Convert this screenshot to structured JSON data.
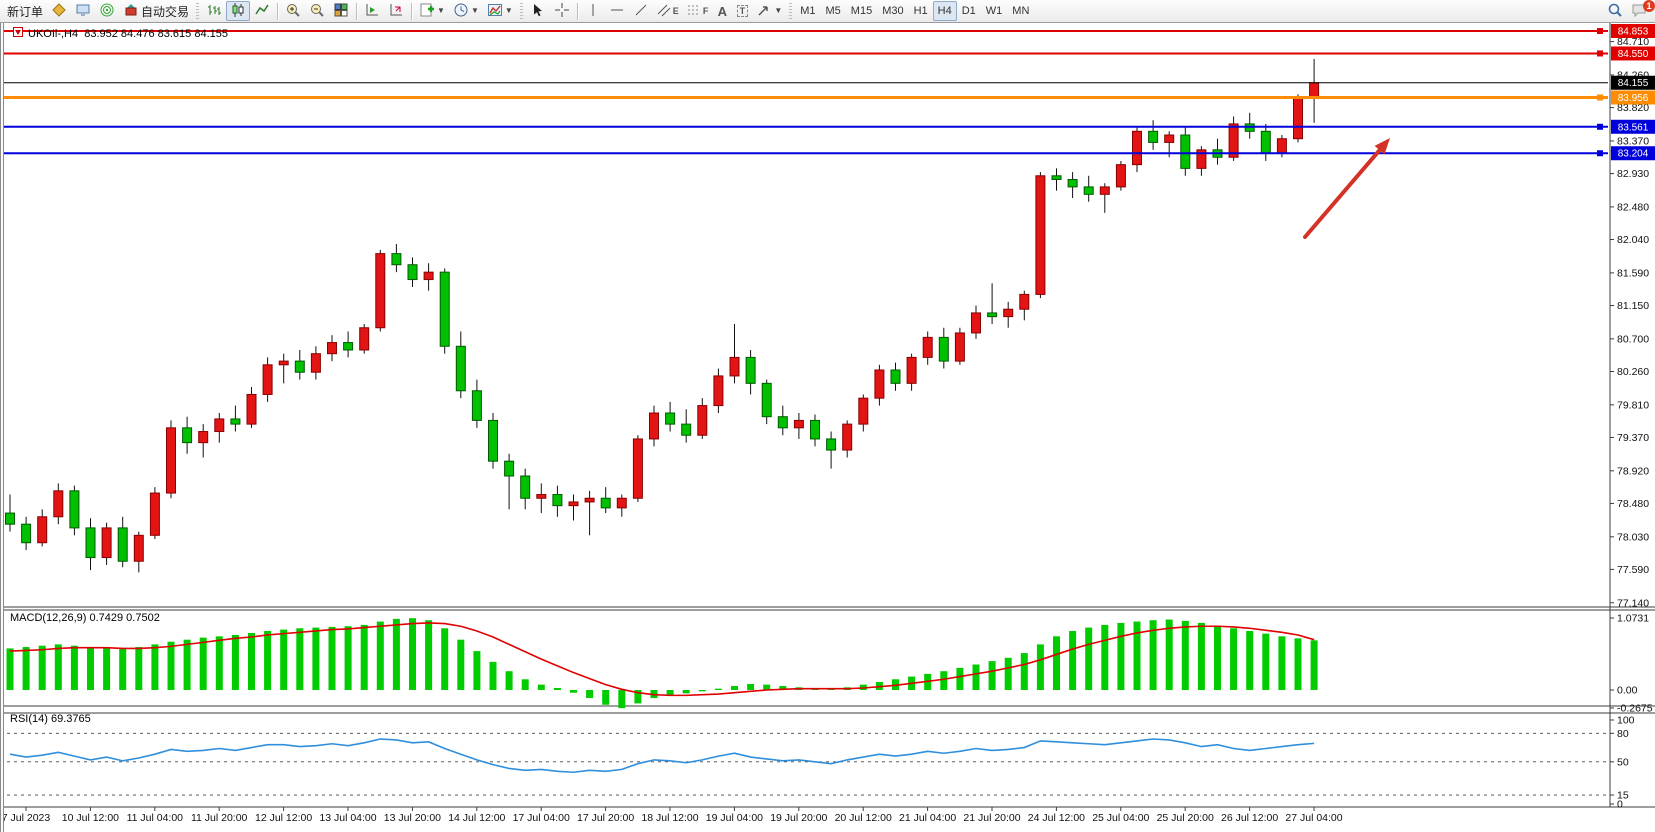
{
  "toolbar": {
    "new_order_label": "新订单",
    "autotrading_label": "自动交易",
    "timeframes": [
      "M1",
      "M5",
      "M15",
      "M30",
      "H1",
      "H4",
      "D1",
      "W1",
      "MN"
    ],
    "active_timeframe": "H4",
    "notification_count": "1",
    "tool_letters": {
      "channel": "E",
      "fibo": "F",
      "text": "A",
      "label": "T"
    }
  },
  "chart": {
    "title": "UKOIl-,H4  83.952 84.476 83.615 84.155"
  },
  "indicators": {
    "macd_label": "MACD(12,26,9) 0.7429 0.7502",
    "rsi_label": "RSI(14) 69.3765"
  },
  "chart_data": {
    "type": "candlestick",
    "symbol": "UKOIl-",
    "timeframe": "H4",
    "ohlc_current": {
      "open": 83.952,
      "high": 84.476,
      "low": 83.615,
      "close": 84.155
    },
    "up_color": "#e21414",
    "down_color": "#00c000",
    "ylim": [
      77.1,
      84.96
    ],
    "price_axis_ticks": [
      "84.710",
      "84.260",
      "83.820",
      "83.370",
      "82.930",
      "82.480",
      "82.040",
      "81.590",
      "81.150",
      "80.700",
      "80.260",
      "79.810",
      "79.370",
      "78.920",
      "78.480",
      "78.030",
      "77.590",
      "77.140"
    ],
    "hlines": [
      {
        "price": 84.853,
        "label": "84.853",
        "color": "#e00000",
        "width": 2
      },
      {
        "price": 84.55,
        "label": "84.550",
        "color": "#e00000",
        "width": 2
      },
      {
        "price": 84.155,
        "label": "84.155",
        "color": "#000000",
        "width": 1,
        "current": true
      },
      {
        "price": 83.956,
        "label": "83.956",
        "color": "#ff8c00",
        "width": 3
      },
      {
        "price": 83.561,
        "label": "83.561",
        "color": "#0000dd",
        "width": 2
      },
      {
        "price": 83.204,
        "label": "83.204",
        "color": "#0000dd",
        "width": 2
      }
    ],
    "time_labels": [
      "7 Jul 2023",
      "10 Jul 12:00",
      "11 Jul 04:00",
      "11 Jul 20:00",
      "12 Jul 12:00",
      "13 Jul 04:00",
      "13 Jul 20:00",
      "14 Jul 12:00",
      "17 Jul 04:00",
      "17 Jul 20:00",
      "18 Jul 12:00",
      "19 Jul 04:00",
      "19 Jul 20:00",
      "20 Jul 12:00",
      "21 Jul 04:00",
      "21 Jul 20:00",
      "24 Jul 12:00",
      "25 Jul 04:00",
      "25 Jul 20:00",
      "26 Jul 12:00",
      "27 Jul 04:00"
    ],
    "candles": [
      [
        78.35,
        78.6,
        78.1,
        78.2
      ],
      [
        78.2,
        78.3,
        77.85,
        77.95
      ],
      [
        77.95,
        78.4,
        77.9,
        78.3
      ],
      [
        78.3,
        78.75,
        78.2,
        78.65
      ],
      [
        78.65,
        78.72,
        78.05,
        78.15
      ],
      [
        78.15,
        78.28,
        77.58,
        77.75
      ],
      [
        77.75,
        78.22,
        77.65,
        78.15
      ],
      [
        78.15,
        78.3,
        77.62,
        77.7
      ],
      [
        77.7,
        78.1,
        77.55,
        78.05
      ],
      [
        78.05,
        78.7,
        78.0,
        78.62
      ],
      [
        78.62,
        79.6,
        78.55,
        79.5
      ],
      [
        79.5,
        79.65,
        79.15,
        79.3
      ],
      [
        79.3,
        79.55,
        79.1,
        79.45
      ],
      [
        79.45,
        79.7,
        79.3,
        79.62
      ],
      [
        79.62,
        79.8,
        79.45,
        79.55
      ],
      [
        79.55,
        80.05,
        79.5,
        79.95
      ],
      [
        79.95,
        80.45,
        79.85,
        80.35
      ],
      [
        80.35,
        80.5,
        80.1,
        80.4
      ],
      [
        80.4,
        80.55,
        80.15,
        80.25
      ],
      [
        80.25,
        80.6,
        80.15,
        80.5
      ],
      [
        80.5,
        80.75,
        80.4,
        80.65
      ],
      [
        80.65,
        80.8,
        80.45,
        80.55
      ],
      [
        80.55,
        80.9,
        80.5,
        80.85
      ],
      [
        80.85,
        81.9,
        80.8,
        81.85
      ],
      [
        81.85,
        81.98,
        81.6,
        81.7
      ],
      [
        81.7,
        81.8,
        81.4,
        81.5
      ],
      [
        81.5,
        81.72,
        81.35,
        81.6
      ],
      [
        81.6,
        81.65,
        80.5,
        80.6
      ],
      [
        80.6,
        80.8,
        79.9,
        80.0
      ],
      [
        80.0,
        80.15,
        79.5,
        79.6
      ],
      [
        79.6,
        79.7,
        78.95,
        79.05
      ],
      [
        79.05,
        79.15,
        78.4,
        78.85
      ],
      [
        78.85,
        78.95,
        78.4,
        78.55
      ],
      [
        78.55,
        78.75,
        78.35,
        78.6
      ],
      [
        78.6,
        78.72,
        78.3,
        78.45
      ],
      [
        78.45,
        78.6,
        78.25,
        78.5
      ],
      [
        78.5,
        78.65,
        78.05,
        78.55
      ],
      [
        78.55,
        78.7,
        78.35,
        78.42
      ],
      [
        78.42,
        78.6,
        78.3,
        78.55
      ],
      [
        78.55,
        79.4,
        78.5,
        79.35
      ],
      [
        79.35,
        79.8,
        79.25,
        79.7
      ],
      [
        79.7,
        79.85,
        79.45,
        79.55
      ],
      [
        79.55,
        79.75,
        79.3,
        79.4
      ],
      [
        79.4,
        79.9,
        79.35,
        79.8
      ],
      [
        79.8,
        80.3,
        79.7,
        80.2
      ],
      [
        80.2,
        80.9,
        80.1,
        80.45
      ],
      [
        80.45,
        80.55,
        79.95,
        80.1
      ],
      [
        80.1,
        80.15,
        79.55,
        79.65
      ],
      [
        79.65,
        79.8,
        79.4,
        79.5
      ],
      [
        79.5,
        79.7,
        79.35,
        79.6
      ],
      [
        79.6,
        79.68,
        79.25,
        79.35
      ],
      [
        79.35,
        79.45,
        78.95,
        79.2
      ],
      [
        79.2,
        79.6,
        79.1,
        79.55
      ],
      [
        79.55,
        79.95,
        79.45,
        79.9
      ],
      [
        79.9,
        80.35,
        79.8,
        80.28
      ],
      [
        80.28,
        80.38,
        80.0,
        80.1
      ],
      [
        80.1,
        80.5,
        80.0,
        80.45
      ],
      [
        80.45,
        80.8,
        80.35,
        80.72
      ],
      [
        80.72,
        80.85,
        80.3,
        80.4
      ],
      [
        80.4,
        80.85,
        80.35,
        80.78
      ],
      [
        80.78,
        81.15,
        80.7,
        81.05
      ],
      [
        81.05,
        81.45,
        80.9,
        81.0
      ],
      [
        81.0,
        81.2,
        80.85,
        81.1
      ],
      [
        81.1,
        81.35,
        80.95,
        81.3
      ],
      [
        81.3,
        82.95,
        81.25,
        82.9
      ],
      [
        82.9,
        83.0,
        82.7,
        82.85
      ],
      [
        82.85,
        82.95,
        82.6,
        82.75
      ],
      [
        82.75,
        82.9,
        82.55,
        82.65
      ],
      [
        82.65,
        82.8,
        82.4,
        82.75
      ],
      [
        82.75,
        83.1,
        82.7,
        83.05
      ],
      [
        83.05,
        83.55,
        82.95,
        83.5
      ],
      [
        83.5,
        83.65,
        83.25,
        83.35
      ],
      [
        83.35,
        83.5,
        83.15,
        83.45
      ],
      [
        83.45,
        83.55,
        82.9,
        83.0
      ],
      [
        83.0,
        83.3,
        82.9,
        83.25
      ],
      [
        83.25,
        83.4,
        83.05,
        83.15
      ],
      [
        83.15,
        83.7,
        83.1,
        83.6
      ],
      [
        83.6,
        83.75,
        83.4,
        83.5
      ],
      [
        83.5,
        83.6,
        83.1,
        83.2
      ],
      [
        83.2,
        83.45,
        83.15,
        83.4
      ],
      [
        83.4,
        84.0,
        83.35,
        83.95
      ],
      [
        83.952,
        84.476,
        83.615,
        84.155
      ]
    ],
    "macd": {
      "label": "MACD(12,26,9) 0.7429 0.7502",
      "value": 0.7429,
      "signal_value": 0.7502,
      "scale_labels": [
        "1.0731",
        "0.00",
        "-0.2675"
      ],
      "scale_values": [
        1.0731,
        0.0,
        -0.2675
      ],
      "histogram_color": "#00cc00",
      "signal_color": "#e00000",
      "histogram": [
        0.62,
        0.64,
        0.66,
        0.68,
        0.66,
        0.64,
        0.62,
        0.62,
        0.64,
        0.68,
        0.72,
        0.75,
        0.78,
        0.8,
        0.82,
        0.85,
        0.88,
        0.9,
        0.92,
        0.93,
        0.94,
        0.95,
        0.97,
        1.02,
        1.06,
        1.07,
        1.04,
        0.92,
        0.75,
        0.58,
        0.42,
        0.28,
        0.16,
        0.08,
        0.03,
        -0.04,
        -0.12,
        -0.22,
        -0.27,
        -0.2,
        -0.12,
        -0.08,
        -0.05,
        -0.02,
        0.02,
        0.06,
        0.09,
        0.08,
        0.06,
        0.04,
        0.03,
        0.02,
        0.04,
        0.08,
        0.12,
        0.16,
        0.2,
        0.24,
        0.28,
        0.33,
        0.38,
        0.43,
        0.48,
        0.55,
        0.68,
        0.8,
        0.88,
        0.93,
        0.97,
        1.0,
        1.02,
        1.04,
        1.05,
        1.03,
        1.0,
        0.96,
        0.92,
        0.88,
        0.84,
        0.8,
        0.77,
        0.74
      ],
      "signal_series": [
        0.58,
        0.59,
        0.6,
        0.62,
        0.63,
        0.63,
        0.63,
        0.62,
        0.62,
        0.63,
        0.65,
        0.68,
        0.71,
        0.74,
        0.77,
        0.79,
        0.82,
        0.84,
        0.86,
        0.88,
        0.9,
        0.91,
        0.93,
        0.95,
        0.97,
        0.99,
        1.0,
        0.99,
        0.95,
        0.88,
        0.79,
        0.68,
        0.57,
        0.46,
        0.36,
        0.26,
        0.17,
        0.08,
        0.01,
        -0.04,
        -0.07,
        -0.08,
        -0.08,
        -0.07,
        -0.06,
        -0.04,
        -0.02,
        0.0,
        0.01,
        0.02,
        0.02,
        0.02,
        0.02,
        0.03,
        0.05,
        0.07,
        0.1,
        0.13,
        0.16,
        0.2,
        0.24,
        0.28,
        0.33,
        0.38,
        0.45,
        0.53,
        0.61,
        0.68,
        0.74,
        0.8,
        0.85,
        0.89,
        0.92,
        0.94,
        0.95,
        0.95,
        0.94,
        0.92,
        0.89,
        0.86,
        0.82,
        0.75
      ]
    },
    "rsi": {
      "label": "RSI(14) 69.3765",
      "value": 69.3765,
      "color": "#2f8fdd",
      "level_labels": [
        "100",
        "80",
        "50",
        "15",
        "0"
      ],
      "level_values": [
        100,
        80,
        50,
        15,
        0
      ],
      "dashed_levels": [
        80,
        50,
        15
      ],
      "series": [
        58,
        55,
        57,
        60,
        56,
        52,
        55,
        51,
        54,
        58,
        63,
        61,
        62,
        64,
        62,
        65,
        68,
        68,
        66,
        67,
        69,
        67,
        70,
        74,
        73,
        70,
        71,
        64,
        58,
        52,
        47,
        43,
        41,
        42,
        40,
        39,
        41,
        40,
        42,
        48,
        52,
        51,
        49,
        52,
        56,
        59,
        55,
        53,
        51,
        52,
        50,
        48,
        52,
        55,
        58,
        56,
        58,
        61,
        59,
        61,
        64,
        62,
        63,
        65,
        72,
        71,
        70,
        69,
        68,
        70,
        72,
        74,
        73,
        70,
        66,
        68,
        64,
        62,
        64,
        66,
        68,
        69.4
      ]
    },
    "arrow": {
      "color": "#d43226",
      "from": [
        1305,
        214
      ],
      "to": [
        1390,
        115
      ]
    }
  }
}
